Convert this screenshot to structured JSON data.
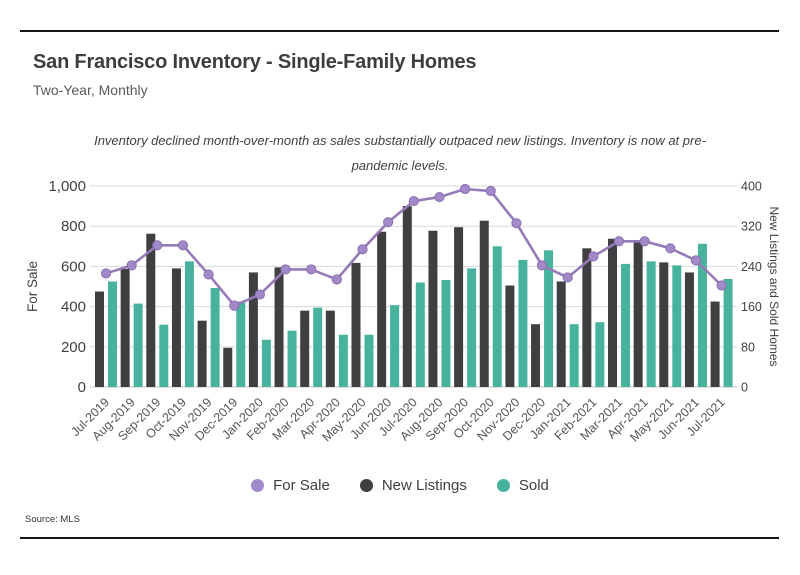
{
  "page": {
    "title": "San Francisco Inventory - Single-Family Homes",
    "subtitle": "Two-Year, Monthly",
    "annotation": "Inventory declined month-over-month as sales substantially outpaced new listings. Inventory is now at pre-pandemic levels.",
    "source": "Source: MLS"
  },
  "legend": {
    "items": [
      {
        "label": "For Sale",
        "color": "#a289c9"
      },
      {
        "label": "New Listings",
        "color": "#3f3f41"
      },
      {
        "label": "Sold",
        "color": "#47b39e"
      }
    ]
  },
  "chart_data": {
    "type": "bar",
    "subtype": "grouped-bars-with-line-overlay",
    "categories": [
      "Jul-2019",
      "Aug-2019",
      "Sep-2019",
      "Oct-2019",
      "Nov-2019",
      "Dec-2019",
      "Jan-2020",
      "Feb-2020",
      "Mar-2020",
      "Apr-2020",
      "May-2020",
      "Jun-2020",
      "Jul-2020",
      "Aug-2020",
      "Sep-2020",
      "Oct-2020",
      "Nov-2020",
      "Dec-2020",
      "Jan-2021",
      "Feb-2021",
      "Mar-2021",
      "Apr-2021",
      "May-2021",
      "Jun-2021",
      "Jul-2021"
    ],
    "series": [
      {
        "name": "For Sale",
        "type": "line",
        "axis": "left",
        "color": "#9679b8",
        "marker_color": "#a289c9",
        "values": [
          565,
          605,
          705,
          705,
          560,
          405,
          460,
          585,
          585,
          535,
          685,
          820,
          925,
          945,
          985,
          975,
          815,
          605,
          545,
          650,
          725,
          725,
          690,
          630,
          505
        ]
      },
      {
        "name": "New Listings",
        "type": "bar",
        "axis": "right",
        "color": "#3f3f41",
        "values": [
          190,
          235,
          305,
          236,
          132,
          78,
          228,
          238,
          152,
          152,
          247,
          309,
          360,
          311,
          318,
          331,
          202,
          125,
          210,
          276,
          295,
          290,
          248,
          228,
          170
        ]
      },
      {
        "name": "Sold",
        "type": "bar",
        "axis": "right",
        "color": "#47b39e",
        "values": [
          210,
          166,
          124,
          250,
          197,
          170,
          94,
          112,
          158,
          104,
          104,
          163,
          208,
          213,
          236,
          280,
          253,
          272,
          125,
          129,
          245,
          250,
          242,
          285,
          215
        ]
      }
    ],
    "left_axis": {
      "title": "For Sale",
      "range": [
        0,
        1000
      ],
      "ticks": [
        0,
        200,
        400,
        600,
        800,
        1000
      ],
      "tick_labels": [
        "0",
        "200",
        "400",
        "600",
        "800",
        "1,000"
      ]
    },
    "right_axis": {
      "title": "New Listings and Sold Homes",
      "range": [
        0,
        400
      ],
      "ticks": [
        0,
        80,
        160,
        240,
        320,
        400
      ],
      "tick_labels": [
        "0",
        "80",
        "160",
        "240",
        "320",
        "400"
      ]
    },
    "grid": "horizontal",
    "legend_position": "bottom"
  }
}
